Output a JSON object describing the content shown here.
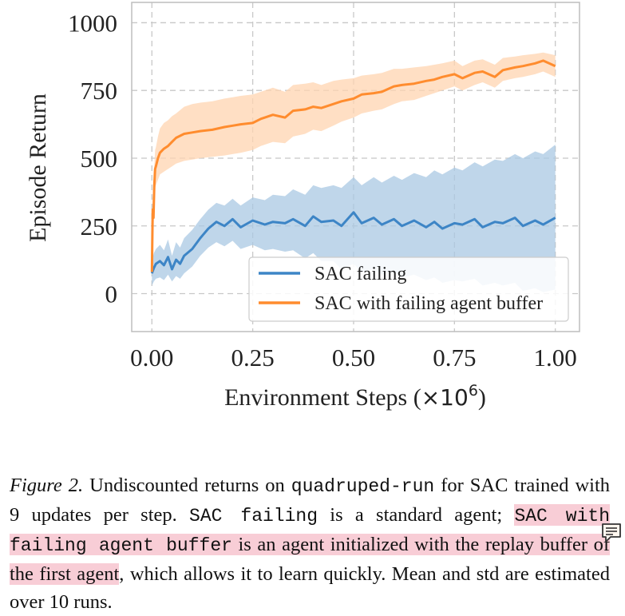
{
  "chart_data": {
    "type": "line",
    "xlabel": "Environment Steps (",
    "xlabel_multiplier": "×10",
    "xlabel_exponent": "6",
    "xlabel_suffix": ")",
    "ylabel": "Episode Return",
    "xlim": [
      -0.05,
      1.06
    ],
    "ylim": [
      -140,
      1075
    ],
    "x_ticks": [
      "0.00",
      "0.25",
      "0.50",
      "0.75",
      "1.00"
    ],
    "y_ticks": [
      "0",
      "250",
      "500",
      "750",
      "1000"
    ],
    "grid": true,
    "legend_position": "lower-right",
    "series": [
      {
        "name": "SAC failing",
        "color": "#3d85c6",
        "band_color": "#a9c8e3",
        "x": [
          0.0,
          0.005,
          0.01,
          0.02,
          0.03,
          0.04,
          0.05,
          0.06,
          0.07,
          0.08,
          0.1,
          0.12,
          0.14,
          0.16,
          0.18,
          0.2,
          0.22,
          0.25,
          0.28,
          0.3,
          0.33,
          0.35,
          0.38,
          0.4,
          0.42,
          0.45,
          0.47,
          0.5,
          0.52,
          0.55,
          0.57,
          0.6,
          0.62,
          0.65,
          0.68,
          0.7,
          0.72,
          0.75,
          0.77,
          0.8,
          0.82,
          0.85,
          0.87,
          0.9,
          0.92,
          0.95,
          0.97,
          1.0
        ],
        "mean": [
          75,
          95,
          110,
          120,
          105,
          135,
          90,
          125,
          110,
          140,
          165,
          205,
          240,
          265,
          250,
          275,
          245,
          270,
          255,
          265,
          260,
          275,
          250,
          285,
          265,
          270,
          250,
          300,
          260,
          280,
          255,
          275,
          250,
          270,
          245,
          265,
          240,
          260,
          255,
          275,
          245,
          265,
          260,
          280,
          250,
          270,
          255,
          280
        ],
        "lower": [
          30,
          45,
          55,
          60,
          50,
          70,
          45,
          65,
          55,
          75,
          100,
          140,
          170,
          190,
          175,
          195,
          165,
          180,
          160,
          165,
          155,
          160,
          130,
          150,
          120,
          120,
          90,
          110,
          80,
          90,
          70,
          80,
          60,
          70,
          50,
          60,
          40,
          50,
          45,
          55,
          30,
          40,
          30,
          40,
          10,
          20,
          5,
          15
        ],
        "upper": [
          120,
          150,
          165,
          180,
          160,
          200,
          140,
          190,
          170,
          205,
          235,
          275,
          310,
          335,
          325,
          350,
          325,
          355,
          345,
          365,
          360,
          385,
          365,
          400,
          390,
          400,
          390,
          430,
          400,
          430,
          410,
          435,
          420,
          445,
          430,
          455,
          440,
          465,
          455,
          485,
          470,
          495,
          490,
          515,
          500,
          525,
          515,
          550
        ]
      },
      {
        "name": "SAC with failing agent buffer",
        "color": "#ff8c2e",
        "band_color": "#ffd4b0",
        "x": [
          0.0,
          0.002,
          0.004,
          0.006,
          0.008,
          0.01,
          0.015,
          0.02,
          0.03,
          0.04,
          0.05,
          0.06,
          0.08,
          0.1,
          0.12,
          0.15,
          0.18,
          0.2,
          0.22,
          0.25,
          0.27,
          0.3,
          0.33,
          0.35,
          0.38,
          0.4,
          0.42,
          0.45,
          0.47,
          0.5,
          0.52,
          0.55,
          0.57,
          0.6,
          0.62,
          0.65,
          0.68,
          0.7,
          0.72,
          0.75,
          0.77,
          0.8,
          0.82,
          0.85,
          0.87,
          0.9,
          0.92,
          0.95,
          0.97,
          1.0
        ],
        "mean": [
          80,
          310,
          280,
          400,
          460,
          470,
          500,
          520,
          535,
          545,
          560,
          575,
          590,
          595,
          600,
          605,
          615,
          620,
          625,
          630,
          645,
          660,
          650,
          675,
          680,
          690,
          685,
          700,
          710,
          720,
          735,
          740,
          745,
          765,
          770,
          775,
          785,
          790,
          800,
          810,
          795,
          815,
          820,
          800,
          825,
          835,
          840,
          850,
          860,
          840
        ],
        "lower": [
          60,
          250,
          230,
          330,
          390,
          400,
          420,
          440,
          450,
          460,
          470,
          480,
          490,
          495,
          500,
          505,
          510,
          515,
          520,
          530,
          545,
          560,
          555,
          580,
          590,
          605,
          600,
          620,
          635,
          650,
          665,
          675,
          680,
          700,
          710,
          715,
          730,
          740,
          750,
          765,
          750,
          770,
          780,
          760,
          785,
          795,
          800,
          810,
          820,
          800
        ],
        "upper": [
          100,
          360,
          330,
          470,
          530,
          540,
          580,
          610,
          630,
          640,
          655,
          665,
          690,
          700,
          705,
          710,
          720,
          725,
          730,
          735,
          745,
          760,
          745,
          770,
          775,
          780,
          770,
          785,
          790,
          795,
          805,
          810,
          815,
          830,
          830,
          835,
          840,
          845,
          850,
          860,
          840,
          860,
          865,
          845,
          870,
          875,
          880,
          885,
          890,
          880
        ]
      }
    ]
  },
  "caption": {
    "label": "Figure 2.",
    "text_1": " Undiscounted returns on ",
    "code_1": "quadruped-run",
    "text_2": " for SAC trained with 9 updates per step. ",
    "code_2": "SAC failing",
    "text_3": " is a standard agent; ",
    "code_3": "SAC with failing agent buffer",
    "text_4": " is an agent initialized with the replay buffer of the first agent",
    "text_5": ", which allows it to learn quickly. Mean and std are estimated over 10 runs."
  },
  "icons": {
    "note": "comment-icon"
  }
}
